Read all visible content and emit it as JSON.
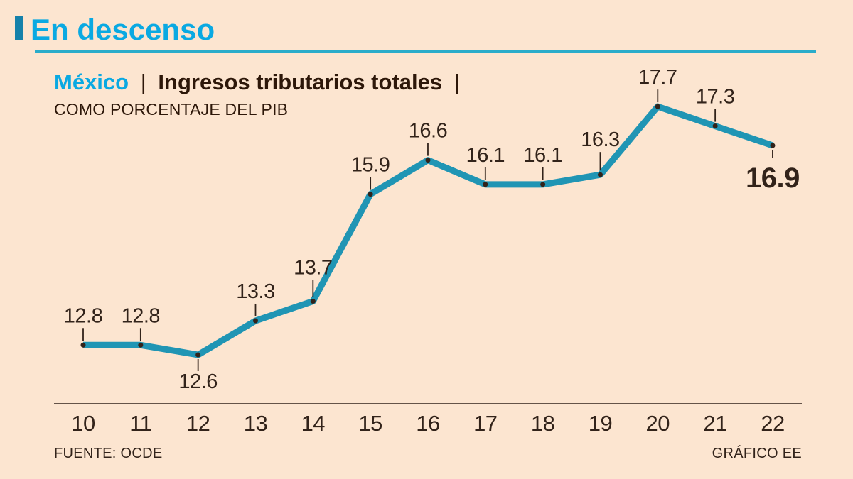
{
  "page": {
    "background": "#fce5d0"
  },
  "header": {
    "kicker": "En descenso",
    "kicker_color": "#0aa9e2",
    "block_color": "#1581aa",
    "rule_color": "#2aacca"
  },
  "title": {
    "region": "México",
    "region_color": "#0aa9e2",
    "separator": "|",
    "main": "Ingresos tributarios totales",
    "trailing_separator": "|",
    "subtitle": "COMO PORCENTAJE DEL PIB",
    "text_color": "#2d1709"
  },
  "footer": {
    "source": "FUENTE: OCDE",
    "credit": "GRÁFICO EE",
    "text_color": "#32231a"
  },
  "chart_data": {
    "type": "line",
    "title": "México | Ingresos tributarios totales | COMO PORCENTAJE DEL PIB",
    "x_labels": [
      "10",
      "11",
      "12",
      "13",
      "14",
      "15",
      "16",
      "17",
      "18",
      "19",
      "20",
      "21",
      "22"
    ],
    "values": [
      12.8,
      12.8,
      12.6,
      13.3,
      13.7,
      15.9,
      16.6,
      16.1,
      16.1,
      16.3,
      17.7,
      17.3,
      16.9
    ],
    "point_labels": [
      "12.8",
      "12.8",
      "12.6",
      "13.3",
      "13.7",
      "15.9",
      "16.6",
      "16.1",
      "16.1",
      "16.3",
      "17.7",
      "17.3",
      "16.9"
    ],
    "label_positions": [
      "above",
      "above",
      "below",
      "above",
      "above",
      "above",
      "above",
      "above",
      "above",
      "above",
      "above",
      "above",
      "below"
    ],
    "label_offsets": {
      "4": -6,
      "9": -8
    },
    "emphasized_index": 12,
    "line_color": "#2095b4",
    "point_color": "#32231a",
    "text_color": "#32231a",
    "axis_color": "#32231a",
    "xlabel": "",
    "ylabel": "",
    "ylim": [
      11.6,
      18.0
    ],
    "grid": false,
    "legend": false
  }
}
